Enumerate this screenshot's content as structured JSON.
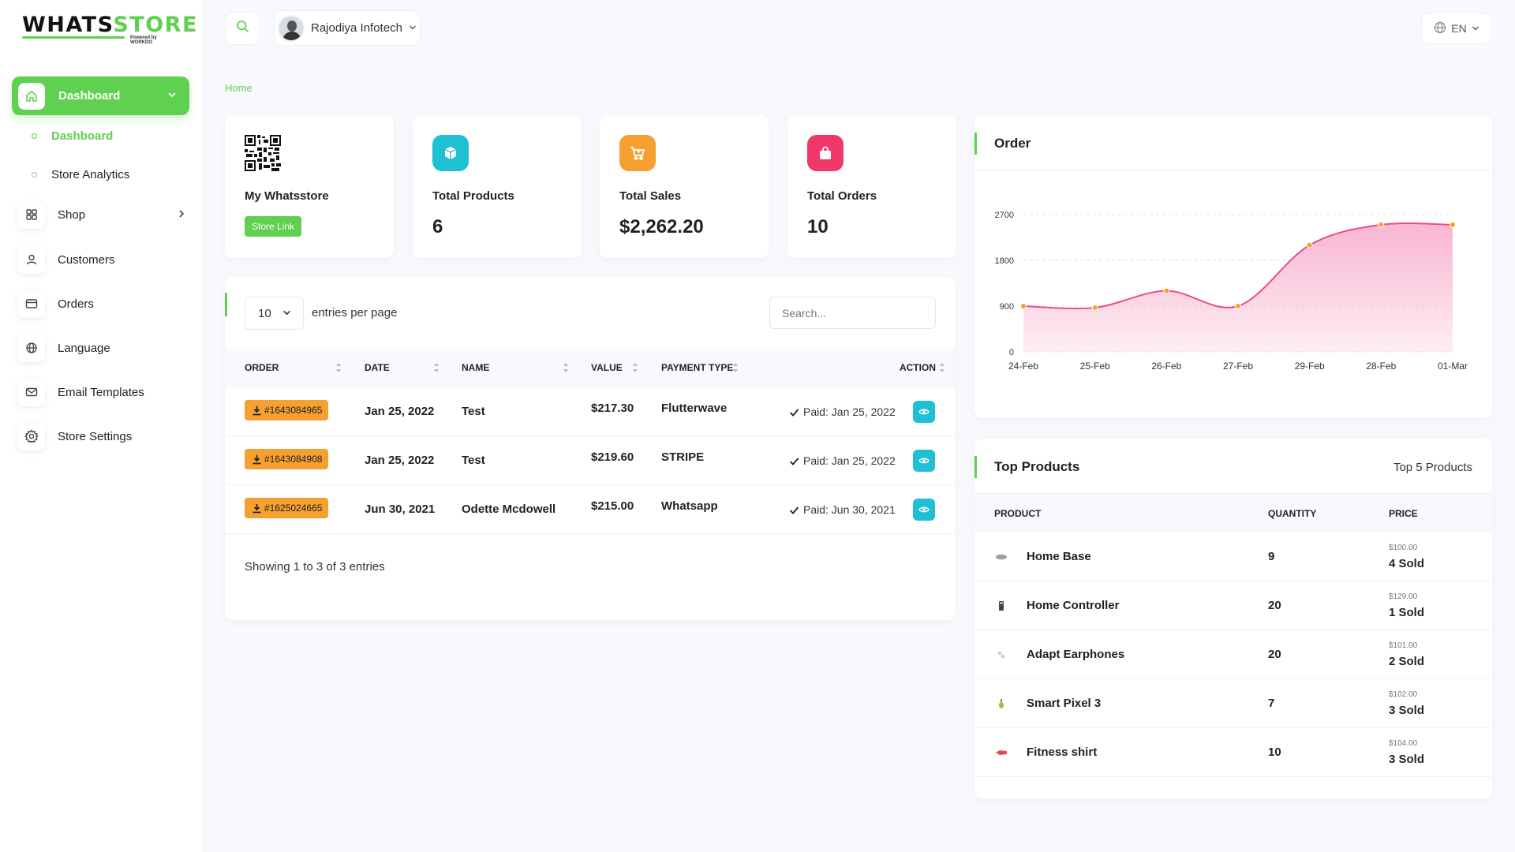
{
  "brand": {
    "logo_part1": "WHATS",
    "logo_part2": "STORE",
    "powered": "Powered by WORKDO"
  },
  "sidebar": {
    "active": {
      "label": "Dashboard"
    },
    "sub": [
      {
        "label": "Dashboard"
      },
      {
        "label": "Store Analytics"
      }
    ],
    "items": [
      {
        "label": "Shop"
      },
      {
        "label": "Customers"
      },
      {
        "label": "Orders"
      },
      {
        "label": "Language"
      },
      {
        "label": "Email Templates"
      },
      {
        "label": "Store Settings"
      }
    ]
  },
  "topbar": {
    "user_name": "Rajodiya Infotech",
    "lang": "EN"
  },
  "breadcrumb": "Home",
  "stats": [
    {
      "title": "My Whatsstore",
      "button": "Store Link"
    },
    {
      "title": "Total Products",
      "value": "6",
      "color": "#1fc0d4"
    },
    {
      "title": "Total Sales",
      "value": "$2,262.20",
      "color": "#f5a030"
    },
    {
      "title": "Total Orders",
      "value": "10",
      "color": "#f0386b"
    }
  ],
  "orders_table": {
    "entries_value": "10",
    "entries_label": "entries per page",
    "search_placeholder": "Search...",
    "columns": [
      "ORDER",
      "DATE",
      "NAME",
      "VALUE",
      "PAYMENT TYPE",
      "ACTION"
    ],
    "rows": [
      {
        "order": "#1643084965",
        "date": "Jan 25, 2022",
        "name": "Test",
        "value": "$217.30",
        "payment": "Flutterwave",
        "status": "Paid: Jan 25, 2022"
      },
      {
        "order": "#1643084908",
        "date": "Jan 25, 2022",
        "name": "Test",
        "value": "$219.60",
        "payment": "STRIPE",
        "status": "Paid: Jan 25, 2022"
      },
      {
        "order": "#1625024665",
        "date": "Jun 30, 2021",
        "name": "Odette Mcdowell",
        "value": "$215.00",
        "payment": "Whatsapp",
        "status": "Paid: Jun 30, 2021"
      }
    ],
    "footer": "Showing 1 to 3 of 3 entries"
  },
  "order_card": {
    "title": "Order"
  },
  "chart_data": {
    "type": "area",
    "categories": [
      "24-Feb",
      "25-Feb",
      "26-Feb",
      "27-Feb",
      "29-Feb",
      "28-Feb",
      "01-Mar"
    ],
    "series": [
      {
        "values": [
          900,
          870,
          1200,
          900,
          2100,
          2500,
          2500
        ]
      }
    ],
    "ylim": [
      0,
      2700
    ],
    "yticks": [
      0,
      900,
      1800,
      2700
    ],
    "grid": true,
    "colors": {
      "line": "#ea4c89",
      "fill": "#f7a8c8",
      "point": "#f5a030"
    }
  },
  "top_products": {
    "title": "Top Products",
    "subtitle": "Top 5 Products",
    "columns": [
      "PRODUCT",
      "QUANTITY",
      "PRICE"
    ],
    "rows": [
      {
        "name": "Home Base",
        "qty": "9",
        "price": "$100.00",
        "sold": "4 Sold",
        "thumb_color": "#9aa0a6"
      },
      {
        "name": "Home Controller",
        "qty": "20",
        "price": "$129.00",
        "sold": "1 Sold",
        "thumb_color": "#444444"
      },
      {
        "name": "Adapt Earphones",
        "qty": "20",
        "price": "$101.00",
        "sold": "2 Sold",
        "thumb_color": "#c9c9c9"
      },
      {
        "name": "Smart Pixel 3",
        "qty": "7",
        "price": "$102.00",
        "sold": "3 Sold",
        "thumb_color": "#b4b43a"
      },
      {
        "name": "Fitness shirt",
        "qty": "10",
        "price": "$104.00",
        "sold": "3 Sold",
        "thumb_color": "#e24b4b"
      }
    ]
  },
  "accent_color": "#5fd04f"
}
